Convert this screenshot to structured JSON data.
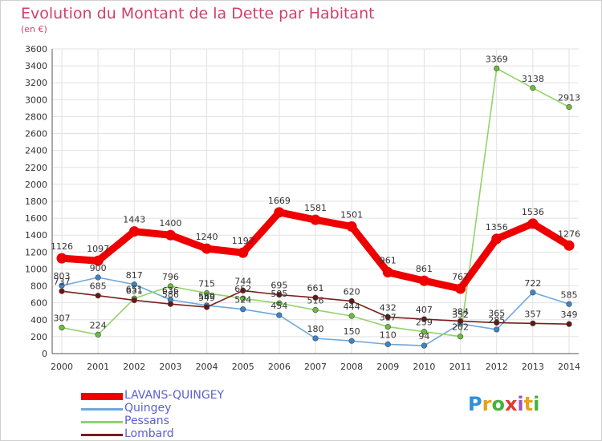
{
  "title": "Evolution du Montant de la Dette par Habitant",
  "subtitle": "(en €)",
  "logo": {
    "letters": [
      "P",
      "r",
      "o",
      "x",
      "i",
      "t",
      "i"
    ],
    "colors": [
      "#2f8fd8",
      "#e8a317",
      "#47b23e",
      "#e03a2e",
      "#9b59b6",
      "#e8a317",
      "#47b23e"
    ]
  },
  "chart_data": {
    "type": "line",
    "x": [
      2000,
      2001,
      2002,
      2003,
      2004,
      2005,
      2006,
      2007,
      2008,
      2009,
      2010,
      2011,
      2012,
      2013,
      2014
    ],
    "ylim": [
      0,
      3600
    ],
    "yticks": [
      0,
      200,
      400,
      600,
      800,
      1000,
      1200,
      1400,
      1600,
      1800,
      2000,
      2200,
      2400,
      2600,
      2800,
      3000,
      3200,
      3400,
      3600
    ],
    "grid": true,
    "legend_position": "bottom-left",
    "series": [
      {
        "name": "LAVANS-QUINGEY",
        "color": "#ee0000",
        "marker": "#ee0000",
        "thick": true,
        "values": [
          1126,
          1097,
          1443,
          1400,
          1240,
          1192,
          1669,
          1581,
          1501,
          961,
          861,
          767,
          1356,
          1536,
          1276
        ],
        "labels": [
          "1126",
          "1097",
          "1443",
          "1400",
          "1240",
          "1192",
          "1669",
          "1581",
          "1501",
          "961",
          "861",
          "767",
          "1356",
          "1536",
          "1276"
        ]
      },
      {
        "name": "Quingey",
        "color": "#6fa8dc",
        "marker": "#3d85c6",
        "values": [
          803,
          900,
          817,
          636,
          569,
          524,
          454,
          180,
          150,
          110,
          94,
          352,
          285,
          722,
          585
        ],
        "labels": [
          "803",
          "900",
          "817",
          "636",
          "569",
          "524",
          "454",
          "180",
          "150",
          "110",
          "94",
          "352",
          "285",
          "722",
          "585"
        ]
      },
      {
        "name": "Pessans",
        "color": "#93d36b",
        "marker": "#6abf3a",
        "values": [
          307,
          224,
          651,
          796,
          715,
          652,
          595,
          516,
          444,
          317,
          259,
          202,
          3369,
          3138,
          2913
        ],
        "labels": [
          "307",
          "224",
          "651",
          "796",
          "715",
          "652",
          "595",
          "516",
          "444",
          "317",
          "259",
          "202",
          "3369",
          "3138",
          "2913"
        ]
      },
      {
        "name": "Lombard",
        "color": "#7a1e1e",
        "marker": "#6b1414",
        "values": [
          737,
          685,
          631,
          586,
          549,
          744,
          695,
          661,
          620,
          432,
          407,
          384,
          365,
          357,
          349
        ],
        "labels": [
          "737",
          "685",
          "631",
          "586",
          "549",
          "744",
          "695",
          "661",
          "620",
          "432",
          "407",
          "384",
          "365",
          "357",
          "349"
        ]
      }
    ]
  }
}
